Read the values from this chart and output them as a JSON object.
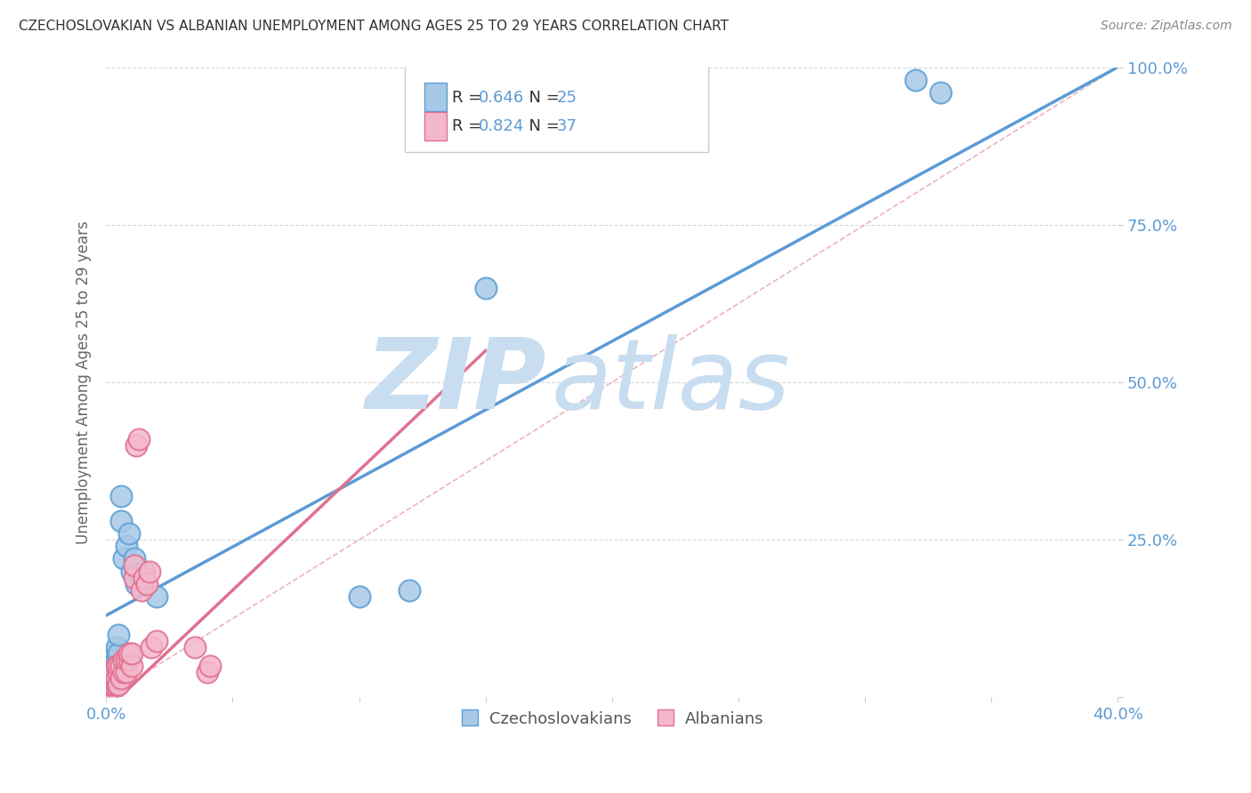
{
  "title": "CZECHOSLOVAKIAN VS ALBANIAN UNEMPLOYMENT AMONG AGES 25 TO 29 YEARS CORRELATION CHART",
  "source": "Source: ZipAtlas.com",
  "ylabel": "Unemployment Among Ages 25 to 29 years",
  "xlim": [
    0.0,
    0.4
  ],
  "ylim": [
    0.0,
    1.0
  ],
  "blue_color": "#a8c8e8",
  "blue_edge_color": "#5a9fd4",
  "pink_color": "#f4b8cc",
  "pink_edge_color": "#e07090",
  "blue_line_color": "#5b9bd5",
  "pink_line_color": "#e07090",
  "ref_line_color": "#e8a0b0",
  "grid_color": "#d8d8d8",
  "title_color": "#333333",
  "axis_label_color": "#666666",
  "tick_color": "#5b9bd5",
  "watermark_color": "#c8ddf0",
  "R_czech": 0.646,
  "N_czech": 25,
  "R_albanian": 0.824,
  "N_albanian": 37,
  "czech_x": [
    0.001,
    0.001,
    0.002,
    0.002,
    0.003,
    0.003,
    0.004,
    0.004,
    0.005,
    0.005,
    0.006,
    0.006,
    0.007,
    0.008,
    0.009,
    0.01,
    0.011,
    0.012,
    0.015,
    0.02,
    0.1,
    0.12,
    0.15,
    0.32,
    0.33
  ],
  "czech_y": [
    0.03,
    0.05,
    0.04,
    0.06,
    0.05,
    0.07,
    0.06,
    0.08,
    0.07,
    0.1,
    0.28,
    0.32,
    0.22,
    0.24,
    0.26,
    0.2,
    0.22,
    0.18,
    0.2,
    0.16,
    0.16,
    0.17,
    0.65,
    0.98,
    0.96
  ],
  "albanian_x": [
    0.001,
    0.001,
    0.002,
    0.002,
    0.002,
    0.003,
    0.003,
    0.003,
    0.004,
    0.004,
    0.004,
    0.005,
    0.005,
    0.005,
    0.006,
    0.006,
    0.007,
    0.007,
    0.008,
    0.008,
    0.009,
    0.009,
    0.01,
    0.01,
    0.011,
    0.011,
    0.012,
    0.013,
    0.014,
    0.015,
    0.016,
    0.017,
    0.018,
    0.02,
    0.035,
    0.04,
    0.041
  ],
  "albanian_y": [
    0.01,
    0.02,
    0.02,
    0.03,
    0.04,
    0.02,
    0.03,
    0.04,
    0.02,
    0.03,
    0.05,
    0.02,
    0.04,
    0.05,
    0.03,
    0.05,
    0.04,
    0.06,
    0.04,
    0.06,
    0.06,
    0.07,
    0.05,
    0.07,
    0.19,
    0.21,
    0.4,
    0.41,
    0.17,
    0.19,
    0.18,
    0.2,
    0.08,
    0.09,
    0.08,
    0.04,
    0.05
  ],
  "blue_trend_x": [
    0.0,
    0.4
  ],
  "blue_trend_y": [
    0.13,
    1.0
  ],
  "pink_trend_x": [
    0.0,
    0.15
  ],
  "pink_trend_y": [
    -0.02,
    0.55
  ]
}
